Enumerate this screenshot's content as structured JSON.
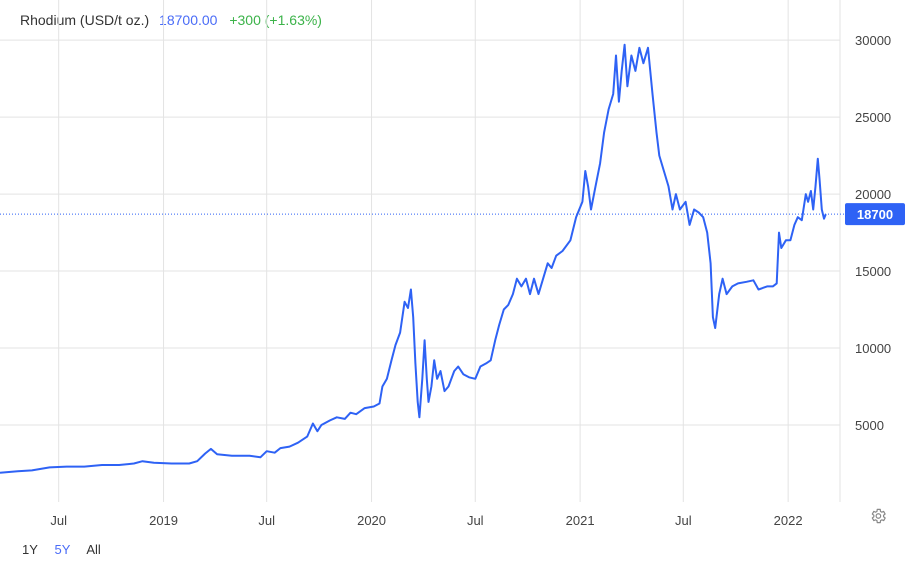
{
  "header": {
    "name": "Rhodium (USD/t oz.)",
    "price": "18700.00",
    "change": "+300 (+1.63%)"
  },
  "range_buttons": [
    {
      "label": "1Y",
      "active": false
    },
    {
      "label": "5Y",
      "active": true
    },
    {
      "label": "All",
      "active": false
    }
  ],
  "settings_icon": "gear-icon",
  "colors": {
    "line": "#2e62f5",
    "price_text": "#4a6cf7",
    "change_text": "#3cb34a",
    "grid": "#e3e3e3",
    "badge_bg": "#2e62f5"
  },
  "chart_data": {
    "type": "line",
    "title": "Rhodium (USD/t oz.)",
    "xlabel": "",
    "ylabel": "",
    "ylim": [
      0,
      31500
    ],
    "xlim": [
      "2018-03-20",
      "2022-04-02"
    ],
    "y_ticks": [
      5000,
      10000,
      15000,
      20000,
      25000,
      30000
    ],
    "y_tick_labels": [
      "5000",
      "10000",
      "15000",
      "20000",
      "25000",
      "30000"
    ],
    "x_ticks": [
      {
        "date": "2018-07-01",
        "label": "Jul"
      },
      {
        "date": "2019-01-01",
        "label": "2019"
      },
      {
        "date": "2019-07-01",
        "label": "Jul"
      },
      {
        "date": "2020-01-01",
        "label": "2020"
      },
      {
        "date": "2020-07-01",
        "label": "Jul"
      },
      {
        "date": "2021-01-01",
        "label": "2021"
      },
      {
        "date": "2021-07-01",
        "label": "Jul"
      },
      {
        "date": "2022-01-01",
        "label": "2022"
      }
    ],
    "last_value": 18700,
    "last_value_label": "18700",
    "grid": true,
    "series": [
      {
        "points": [
          [
            "2018-03-20",
            1900
          ],
          [
            "2018-04-20",
            2000
          ],
          [
            "2018-05-15",
            2050
          ],
          [
            "2018-06-15",
            2250
          ],
          [
            "2018-07-15",
            2300
          ],
          [
            "2018-08-15",
            2300
          ],
          [
            "2018-09-15",
            2400
          ],
          [
            "2018-10-15",
            2400
          ],
          [
            "2018-11-10",
            2500
          ],
          [
            "2018-11-25",
            2650
          ],
          [
            "2018-12-15",
            2550
          ],
          [
            "2019-01-15",
            2500
          ],
          [
            "2019-02-15",
            2500
          ],
          [
            "2019-03-01",
            2650
          ],
          [
            "2019-03-15",
            3150
          ],
          [
            "2019-03-25",
            3450
          ],
          [
            "2019-04-05",
            3100
          ],
          [
            "2019-05-01",
            3000
          ],
          [
            "2019-06-01",
            3000
          ],
          [
            "2019-06-20",
            2900
          ],
          [
            "2019-07-01",
            3300
          ],
          [
            "2019-07-15",
            3200
          ],
          [
            "2019-07-25",
            3500
          ],
          [
            "2019-08-10",
            3600
          ],
          [
            "2019-08-25",
            3850
          ],
          [
            "2019-09-10",
            4250
          ],
          [
            "2019-09-20",
            5100
          ],
          [
            "2019-09-28",
            4600
          ],
          [
            "2019-10-05",
            5000
          ],
          [
            "2019-10-20",
            5300
          ],
          [
            "2019-11-01",
            5500
          ],
          [
            "2019-11-15",
            5400
          ],
          [
            "2019-11-25",
            5800
          ],
          [
            "2019-12-05",
            5700
          ],
          [
            "2019-12-20",
            6100
          ],
          [
            "2020-01-05",
            6200
          ],
          [
            "2020-01-15",
            6400
          ],
          [
            "2020-01-20",
            7500
          ],
          [
            "2020-01-28",
            8000
          ],
          [
            "2020-02-05",
            9200
          ],
          [
            "2020-02-12",
            10200
          ],
          [
            "2020-02-20",
            11000
          ],
          [
            "2020-02-28",
            13000
          ],
          [
            "2020-03-05",
            12600
          ],
          [
            "2020-03-10",
            13800
          ],
          [
            "2020-03-14",
            12000
          ],
          [
            "2020-03-18",
            9000
          ],
          [
            "2020-03-22",
            6500
          ],
          [
            "2020-03-25",
            5500
          ],
          [
            "2020-03-30",
            8000
          ],
          [
            "2020-04-03",
            10500
          ],
          [
            "2020-04-07",
            8000
          ],
          [
            "2020-04-10",
            6500
          ],
          [
            "2020-04-15",
            7500
          ],
          [
            "2020-04-20",
            9200
          ],
          [
            "2020-04-25",
            8000
          ],
          [
            "2020-05-01",
            8500
          ],
          [
            "2020-05-08",
            7200
          ],
          [
            "2020-05-15",
            7500
          ],
          [
            "2020-05-25",
            8500
          ],
          [
            "2020-06-01",
            8800
          ],
          [
            "2020-06-10",
            8300
          ],
          [
            "2020-06-20",
            8100
          ],
          [
            "2020-07-01",
            8000
          ],
          [
            "2020-07-10",
            8800
          ],
          [
            "2020-07-20",
            9000
          ],
          [
            "2020-07-28",
            9200
          ],
          [
            "2020-08-05",
            10500
          ],
          [
            "2020-08-12",
            11500
          ],
          [
            "2020-08-20",
            12500
          ],
          [
            "2020-08-28",
            12800
          ],
          [
            "2020-09-05",
            13500
          ],
          [
            "2020-09-12",
            14500
          ],
          [
            "2020-09-20",
            14000
          ],
          [
            "2020-09-28",
            14500
          ],
          [
            "2020-10-05",
            13500
          ],
          [
            "2020-10-12",
            14500
          ],
          [
            "2020-10-20",
            13500
          ],
          [
            "2020-10-28",
            14500
          ],
          [
            "2020-11-05",
            15500
          ],
          [
            "2020-11-12",
            15200
          ],
          [
            "2020-11-20",
            16000
          ],
          [
            "2020-12-01",
            16300
          ],
          [
            "2020-12-15",
            17000
          ],
          [
            "2020-12-25",
            18500
          ],
          [
            "2021-01-05",
            19500
          ],
          [
            "2021-01-10",
            21500
          ],
          [
            "2021-01-15",
            20500
          ],
          [
            "2021-01-20",
            19000
          ],
          [
            "2021-01-28",
            20500
          ],
          [
            "2021-02-05",
            22000
          ],
          [
            "2021-02-12",
            24000
          ],
          [
            "2021-02-20",
            25500
          ],
          [
            "2021-02-28",
            26500
          ],
          [
            "2021-03-05",
            29000
          ],
          [
            "2021-03-10",
            26000
          ],
          [
            "2021-03-15",
            28000
          ],
          [
            "2021-03-20",
            29700
          ],
          [
            "2021-03-25",
            27000
          ],
          [
            "2021-04-01",
            29000
          ],
          [
            "2021-04-08",
            28000
          ],
          [
            "2021-04-15",
            29500
          ],
          [
            "2021-04-22",
            28500
          ],
          [
            "2021-04-30",
            29500
          ],
          [
            "2021-05-08",
            26500
          ],
          [
            "2021-05-15",
            24000
          ],
          [
            "2021-05-20",
            22500
          ],
          [
            "2021-05-28",
            21500
          ],
          [
            "2021-06-05",
            20500
          ],
          [
            "2021-06-12",
            19000
          ],
          [
            "2021-06-18",
            20000
          ],
          [
            "2021-06-25",
            19000
          ],
          [
            "2021-07-05",
            19500
          ],
          [
            "2021-07-12",
            18000
          ],
          [
            "2021-07-20",
            19000
          ],
          [
            "2021-07-28",
            18800
          ],
          [
            "2021-08-05",
            18500
          ],
          [
            "2021-08-12",
            17500
          ],
          [
            "2021-08-18",
            15500
          ],
          [
            "2021-08-22",
            12000
          ],
          [
            "2021-08-26",
            11300
          ],
          [
            "2021-09-02",
            13500
          ],
          [
            "2021-09-08",
            14500
          ],
          [
            "2021-09-15",
            13500
          ],
          [
            "2021-09-25",
            14000
          ],
          [
            "2021-10-05",
            14200
          ],
          [
            "2021-10-20",
            14300
          ],
          [
            "2021-11-01",
            14400
          ],
          [
            "2021-11-10",
            13800
          ],
          [
            "2021-11-25",
            14000
          ],
          [
            "2021-12-05",
            14000
          ],
          [
            "2021-12-12",
            14200
          ],
          [
            "2021-12-16",
            17500
          ],
          [
            "2021-12-20",
            16500
          ],
          [
            "2021-12-28",
            17000
          ],
          [
            "2022-01-05",
            17000
          ],
          [
            "2022-01-12",
            18000
          ],
          [
            "2022-01-18",
            18500
          ],
          [
            "2022-01-25",
            18300
          ],
          [
            "2022-02-01",
            20000
          ],
          [
            "2022-02-05",
            19500
          ],
          [
            "2022-02-10",
            20200
          ],
          [
            "2022-02-14",
            19000
          ],
          [
            "2022-02-18",
            20500
          ],
          [
            "2022-02-22",
            22300
          ],
          [
            "2022-02-25",
            21000
          ],
          [
            "2022-03-01",
            19000
          ],
          [
            "2022-03-05",
            18400
          ],
          [
            "2022-03-08",
            18700
          ]
        ]
      }
    ]
  }
}
